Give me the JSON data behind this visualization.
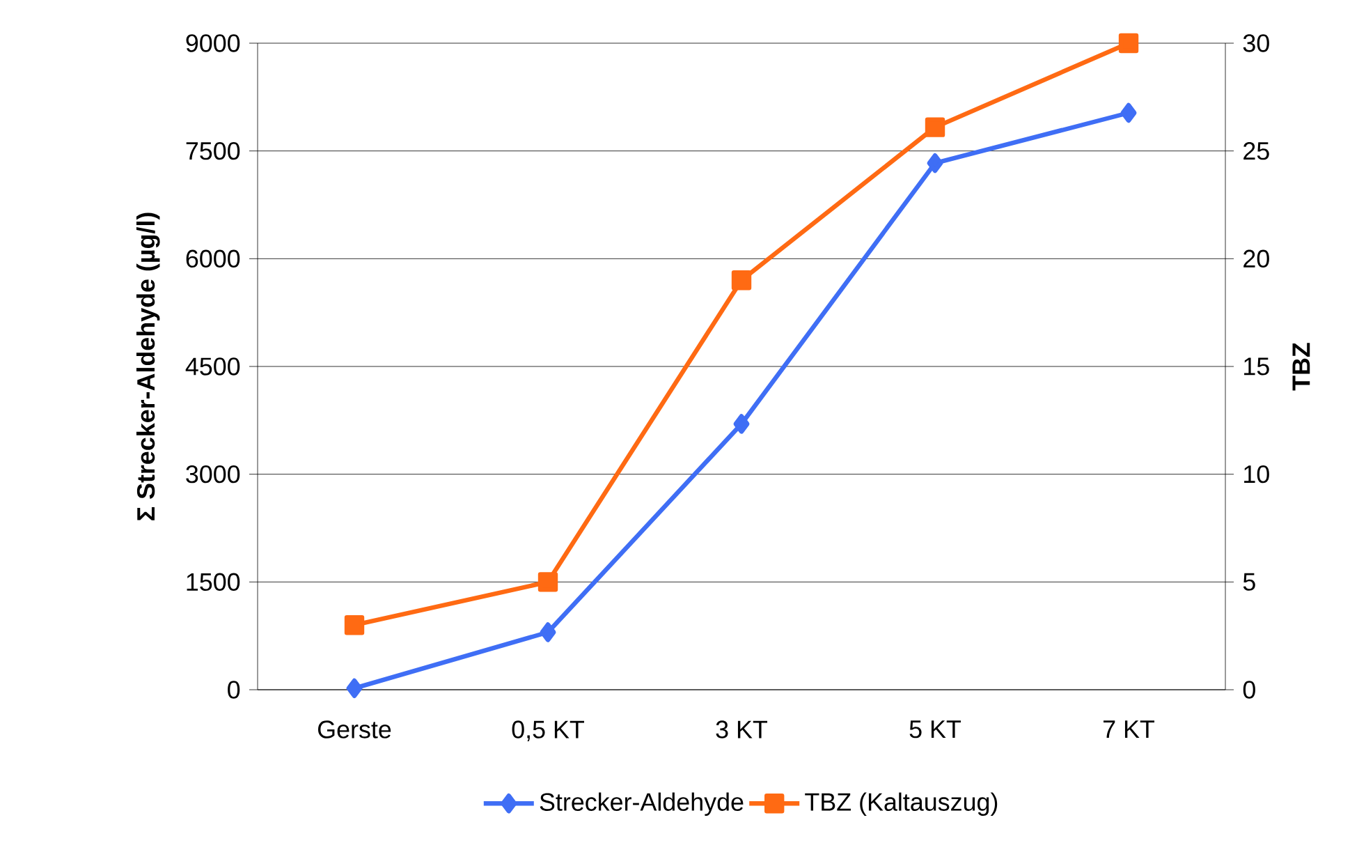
{
  "chart_data": {
    "type": "line",
    "xlabel": null,
    "ylabel": "Σ Strecker-Aldehyde (µg/l)",
    "y2label": "TBZ",
    "categories": [
      "Gerste",
      "0,5 KT",
      "3 KT",
      "5 KT",
      "7 KT"
    ],
    "series": [
      {
        "name": "Strecker-Aldehyde",
        "color": "#3f6ef5",
        "marker": "diamond",
        "values": [
          20,
          800,
          3700,
          7330,
          8030
        ]
      },
      {
        "name": "TBZ (Kaltauszug)",
        "color": "#ff6a13",
        "marker": "square",
        "axis": "y2",
        "values": [
          3,
          5,
          19,
          26.1,
          30
        ]
      }
    ],
    "ylim": [
      0,
      9000
    ],
    "yticks": [
      0,
      1500,
      3000,
      4500,
      6000,
      7500,
      9000
    ],
    "y2lim": [
      0,
      30
    ],
    "y2ticks": [
      0,
      5,
      10,
      15,
      20,
      25,
      30
    ],
    "grid": "y",
    "legend": "bottom",
    "line_style": "solid"
  }
}
